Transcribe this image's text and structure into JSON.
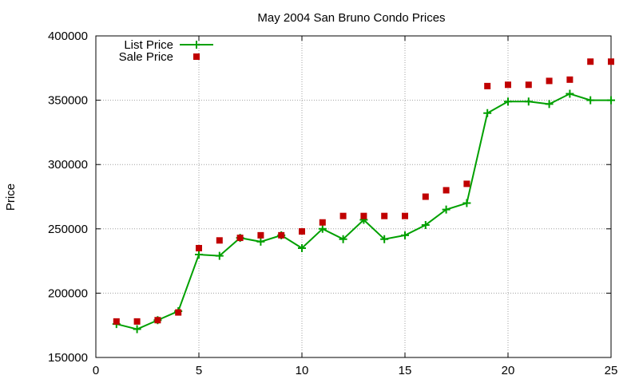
{
  "chart_data": {
    "type": "line",
    "title": "May 2004 San Bruno Condo Prices",
    "xlabel": "",
    "ylabel": "Price",
    "xlim": [
      0,
      25
    ],
    "ylim": [
      150000,
      400000
    ],
    "xticks": [
      0,
      5,
      10,
      15,
      20,
      25
    ],
    "yticks": [
      150000,
      200000,
      250000,
      300000,
      350000,
      400000
    ],
    "grid": true,
    "legend_position": "top-left",
    "series": [
      {
        "name": "List Price",
        "style": "line-with-plus-markers",
        "color": "#00a000",
        "x": [
          1,
          2,
          3,
          4,
          5,
          6,
          7,
          8,
          9,
          10,
          11,
          12,
          13,
          14,
          15,
          16,
          17,
          18,
          19,
          20,
          21,
          22,
          23,
          24,
          25
        ],
        "y": [
          176000,
          172000,
          179000,
          186000,
          230000,
          229000,
          243000,
          240000,
          245000,
          235000,
          250000,
          242000,
          257000,
          242000,
          245000,
          253000,
          265000,
          270000,
          340000,
          349000,
          349000,
          347000,
          355000,
          350000,
          350000
        ]
      },
      {
        "name": "Sale Price",
        "style": "square-markers",
        "color": "#c00000",
        "x": [
          1,
          2,
          3,
          4,
          5,
          6,
          7,
          8,
          9,
          10,
          11,
          12,
          13,
          14,
          15,
          16,
          17,
          18,
          19,
          20,
          21,
          22,
          23,
          24,
          25
        ],
        "y": [
          178000,
          178000,
          179000,
          185000,
          235000,
          241000,
          243000,
          245000,
          245000,
          248000,
          255000,
          260000,
          260000,
          260000,
          260000,
          275000,
          280000,
          285000,
          361000,
          362000,
          362000,
          365000,
          366000,
          380000,
          380000
        ]
      }
    ]
  }
}
